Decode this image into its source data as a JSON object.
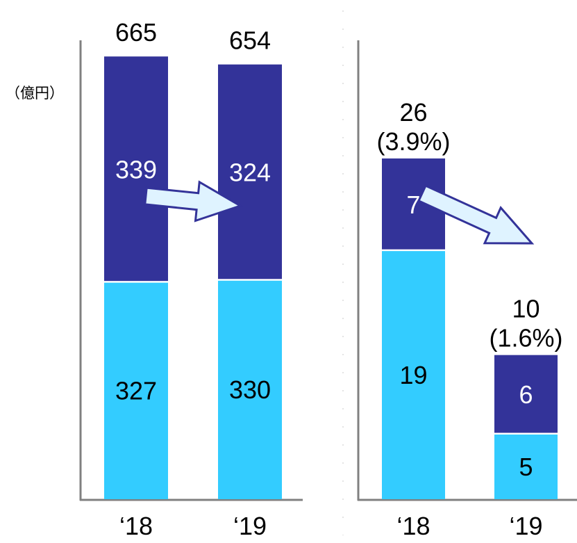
{
  "unit_label": "（億円）",
  "colors": {
    "dark": "#333399",
    "light": "#33ccff",
    "axis": "#808080",
    "arrow_fill": "#dff3ff",
    "arrow_stroke": "#333399"
  },
  "chart_data": [
    {
      "type": "bar",
      "stacked": true,
      "categories": [
        "‘18",
        "‘19"
      ],
      "series": [
        {
          "values": [
            327,
            330
          ],
          "color": "#33ccff"
        },
        {
          "values": [
            339,
            324
          ],
          "color": "#333399"
        }
      ],
      "totals": [
        "665",
        "654"
      ],
      "value_labels": {
        "bottom": [
          "327",
          "330"
        ],
        "top": [
          "339",
          "324"
        ]
      },
      "ratios": [
        "",
        ""
      ],
      "ylim": [
        0,
        700
      ],
      "trend_arrow": true
    },
    {
      "type": "bar",
      "stacked": true,
      "categories": [
        "‘18",
        "‘19"
      ],
      "series": [
        {
          "values": [
            19,
            5
          ],
          "color": "#33ccff"
        },
        {
          "values": [
            7,
            6
          ],
          "color": "#333399"
        }
      ],
      "totals": [
        "26",
        "10"
      ],
      "value_labels": {
        "bottom": [
          "19",
          "5"
        ],
        "top": [
          "7",
          "6"
        ]
      },
      "ratios": [
        "(3.9%)",
        "(1.6%)"
      ],
      "ylim": [
        0,
        40
      ],
      "trend_arrow": true
    }
  ]
}
